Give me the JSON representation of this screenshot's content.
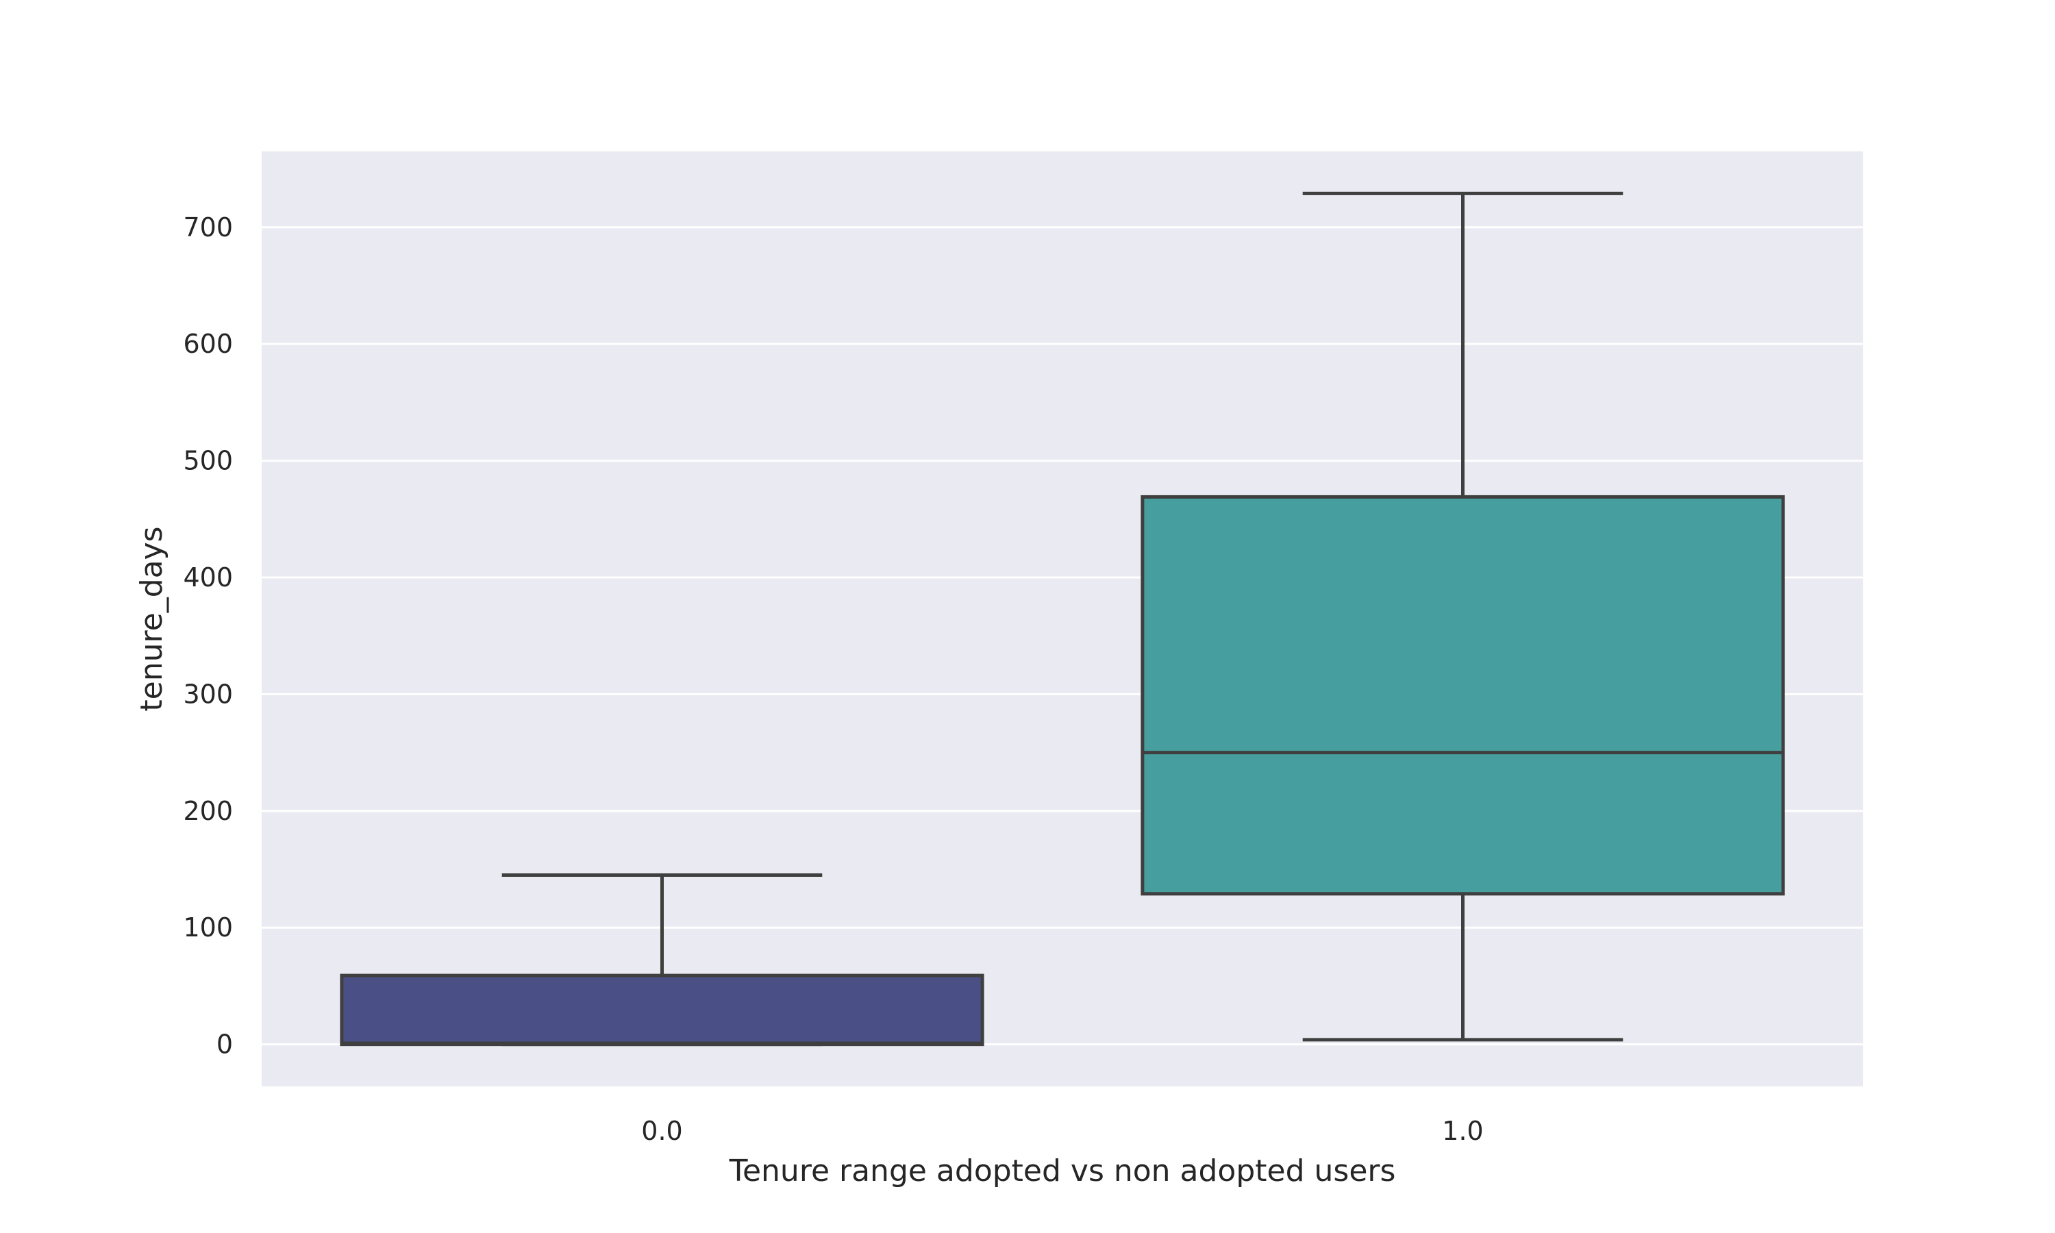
{
  "chart_data": {
    "type": "box",
    "title": "",
    "xlabel": "Tenure range adopted vs non adopted users",
    "ylabel": "tenure_days",
    "ylim": [
      -36,
      765
    ],
    "yticks": [
      0,
      100,
      200,
      300,
      400,
      500,
      600,
      700
    ],
    "ytick_labels": [
      "0",
      "100",
      "200",
      "300",
      "400",
      "500",
      "600",
      "700"
    ],
    "grid": true,
    "categories": [
      "0.0",
      "1.0"
    ],
    "boxes": [
      {
        "category": "0.0",
        "whisker_low": 0,
        "q1": 0,
        "median": 1,
        "q3": 59,
        "whisker_high": 145,
        "color": "#4a5086"
      },
      {
        "category": "1.0",
        "whisker_low": 4,
        "q1": 129,
        "median": 250,
        "q3": 469,
        "whisker_high": 729,
        "color": "#479e9e"
      }
    ],
    "colors": {
      "background": "#eaeaf2",
      "grid": "#ffffff",
      "box_edge": "#3f3f3f"
    }
  }
}
